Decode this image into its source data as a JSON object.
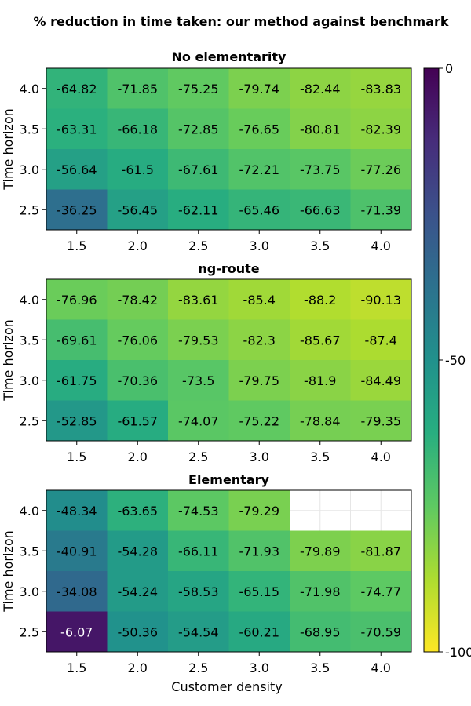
{
  "chart_data": {
    "type": "heatmap",
    "title": "% reduction in time taken: our method against benchmark",
    "xlabel": "Customer density",
    "ylabel": "Time horizon",
    "x": [
      "1.5",
      "2.0",
      "2.5",
      "3.0",
      "3.5",
      "4.0"
    ],
    "y": [
      "4.0",
      "3.5",
      "3.0",
      "2.5"
    ],
    "colormap": "viridis (reversed: 0 = dark purple, -100 = yellow)",
    "colorbar": {
      "min": -100,
      "max": 0,
      "ticks": [
        "0",
        "-50",
        "-100"
      ]
    },
    "panels": [
      {
        "title": "No elementarity",
        "values": [
          [
            -64.82,
            -71.85,
            -75.25,
            -79.74,
            -82.44,
            -83.83
          ],
          [
            -63.31,
            -66.18,
            -72.85,
            -76.65,
            -80.81,
            -82.39
          ],
          [
            -56.64,
            -61.5,
            -67.61,
            -72.21,
            -73.75,
            -77.26
          ],
          [
            -36.25,
            -56.45,
            -62.11,
            -65.46,
            -66.63,
            -71.39
          ]
        ]
      },
      {
        "title": "ng-route",
        "values": [
          [
            -76.96,
            -78.42,
            -83.61,
            -85.4,
            -88.2,
            -90.13
          ],
          [
            -69.61,
            -76.06,
            -79.53,
            -82.3,
            -85.67,
            -87.4
          ],
          [
            -61.75,
            -70.36,
            -73.5,
            -79.75,
            -81.9,
            -84.49
          ],
          [
            -52.85,
            -61.57,
            -74.07,
            -75.22,
            -78.84,
            -79.35
          ]
        ]
      },
      {
        "title": "Elementary",
        "values": [
          [
            -48.34,
            -63.65,
            -74.53,
            -79.29,
            null,
            null
          ],
          [
            -40.91,
            -54.28,
            -66.11,
            -71.93,
            -79.89,
            -81.87
          ],
          [
            -34.08,
            -54.24,
            -58.53,
            -65.15,
            -71.98,
            -74.77
          ],
          [
            -6.07,
            -50.36,
            -54.54,
            -60.21,
            -68.95,
            -70.59
          ]
        ]
      }
    ]
  }
}
